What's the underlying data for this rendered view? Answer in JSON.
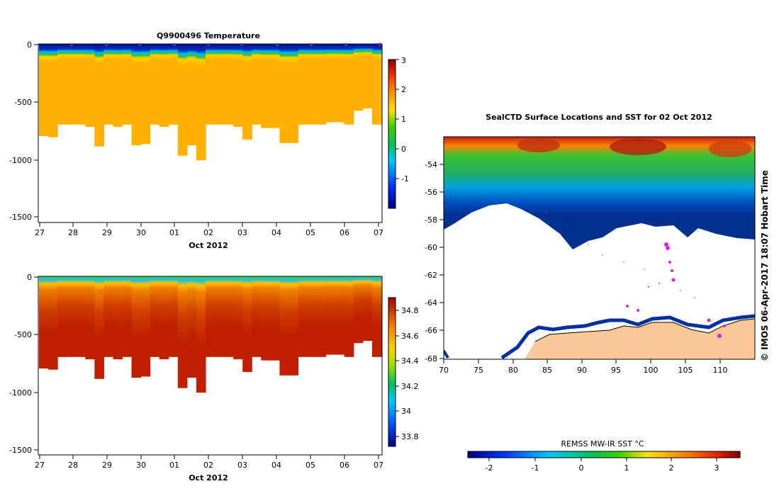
{
  "chart_data": [
    {
      "type": "heatmap",
      "title": "Q9900496  Temperature",
      "xlabel": "Oct 2012",
      "x_ticks": [
        "27",
        "28",
        "29",
        "30",
        "01",
        "02",
        "03",
        "04",
        "05",
        "06",
        "07"
      ],
      "y_ticks": [
        "0",
        "-500",
        "-1000",
        "-1500"
      ],
      "y_tick_values": [
        0,
        -500,
        -1000,
        -1500
      ],
      "ylim": [
        -1550,
        0
      ],
      "colorbar_ticks": [
        "3",
        "2",
        "1",
        "0",
        "-1"
      ],
      "colorbar_values": [
        3,
        2,
        1,
        0,
        -1
      ],
      "colorbar_range": [
        -2,
        3
      ],
      "profile_bottom_depths": [
        800,
        810,
        700,
        700,
        700,
        720,
        890,
        700,
        720,
        700,
        880,
        870,
        700,
        720,
        700,
        970,
        880,
        1010,
        700,
        700,
        700,
        720,
        830,
        700,
        730,
        730,
        860,
        860,
        700,
        700,
        700,
        680,
        680,
        700,
        580,
        560,
        700
      ]
    },
    {
      "type": "heatmap",
      "title": "",
      "xlabel": "Oct 2012",
      "x_ticks": [
        "27",
        "28",
        "29",
        "30",
        "01",
        "02",
        "03",
        "04",
        "05",
        "06",
        "07"
      ],
      "y_ticks": [
        "0",
        "-500",
        "-1000",
        "-1500"
      ],
      "y_tick_values": [
        0,
        -500,
        -1000,
        -1500
      ],
      "ylim": [
        -1550,
        0
      ],
      "colorbar_ticks": [
        "34.8",
        "34.6",
        "34.4",
        "34.2",
        "34",
        "33.8"
      ],
      "colorbar_values": [
        34.8,
        34.6,
        34.4,
        34.2,
        34.0,
        33.8
      ],
      "colorbar_range": [
        33.7,
        34.9
      ],
      "profile_bottom_depths": [
        800,
        810,
        700,
        700,
        700,
        720,
        890,
        700,
        720,
        700,
        880,
        870,
        700,
        720,
        700,
        970,
        880,
        1010,
        700,
        700,
        700,
        720,
        830,
        700,
        730,
        730,
        860,
        860,
        700,
        700,
        700,
        680,
        680,
        700,
        580,
        560,
        700
      ]
    },
    {
      "type": "heatmap",
      "title": "SealCTD Surface Locations and SST for 02 Oct 2012",
      "x_ticks": [
        "70",
        "75",
        "80",
        "85",
        "90",
        "95",
        "100",
        "105",
        "110"
      ],
      "x_tick_values": [
        70,
        75,
        80,
        85,
        90,
        95,
        100,
        105,
        110
      ],
      "y_ticks": [
        "-54",
        "-56",
        "-58",
        "-60",
        "-62",
        "-64",
        "-66",
        "-68"
      ],
      "y_tick_values": [
        -54,
        -56,
        -58,
        -60,
        -62,
        -64,
        -66,
        -68
      ],
      "xlim": [
        70,
        114.5
      ],
      "ylim": [
        -68,
        -52
      ],
      "colorbar_label": "REMSS MW-IR SST °C",
      "colorbar_ticks": [
        "-2",
        "-1",
        "0",
        "1",
        "2",
        "3"
      ],
      "colorbar_values": [
        -2,
        -1,
        0,
        1,
        2,
        3
      ],
      "colorbar_range": [
        -2.6,
        3.5
      ],
      "side_label": "© IMOS 06-Apr-2017 18:07 Hobart Time"
    }
  ]
}
